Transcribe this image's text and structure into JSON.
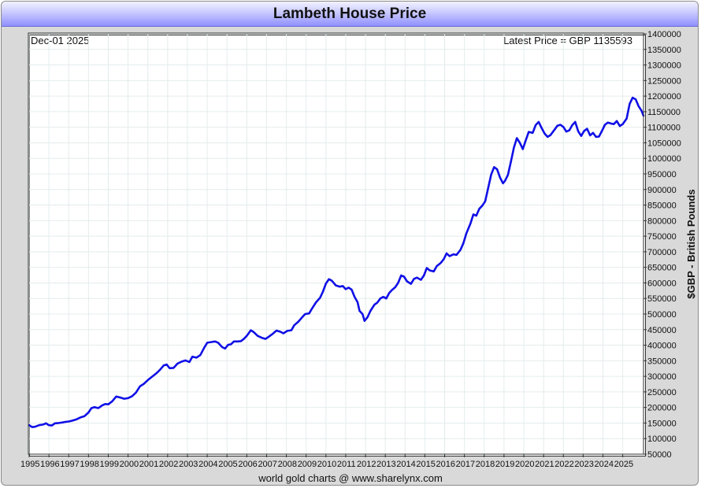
{
  "title": "Lambeth House Price",
  "date_label": "Dec-01  2025",
  "latest_price_label": "Latest Price = GBP 1135593",
  "footer": "world gold charts @ www.sharelynx.com",
  "colors": {
    "line": "#1010e6",
    "grid": "#e4ecec",
    "frame": "#d9d9d9"
  },
  "chart_data": {
    "type": "line",
    "title": "Lambeth House Price",
    "xlabel": "",
    "ylabel": "$GBP - British Pounds",
    "ylim": [
      50000,
      1400000
    ],
    "xlim": [
      1995.0,
      2026.05
    ],
    "y_ticks": [
      50000,
      100000,
      150000,
      200000,
      250000,
      300000,
      350000,
      400000,
      450000,
      500000,
      550000,
      600000,
      650000,
      700000,
      750000,
      800000,
      850000,
      900000,
      950000,
      1000000,
      1050000,
      1100000,
      1150000,
      1200000,
      1250000,
      1300000,
      1350000,
      1400000
    ],
    "x_ticks": [
      "1995",
      "1996",
      "1997",
      "1998",
      "1999",
      "2000",
      "2001",
      "2002",
      "2003",
      "2004",
      "2005",
      "2006",
      "2007",
      "2008",
      "2009",
      "2010",
      "2011",
      "2012",
      "2013",
      "2014",
      "2015",
      "2016",
      "2017",
      "2018",
      "2019",
      "2020",
      "2021",
      "2022",
      "2023",
      "2024",
      "2025"
    ],
    "series": [
      {
        "name": "Lambeth House Price (GBP)",
        "points": [
          [
            1995.0,
            143000
          ],
          [
            1995.15,
            137000
          ],
          [
            1995.3,
            138000
          ],
          [
            1995.5,
            143000
          ],
          [
            1995.7,
            145000
          ],
          [
            1995.85,
            149000
          ],
          [
            1996.0,
            143000
          ],
          [
            1996.15,
            142000
          ],
          [
            1996.3,
            149000
          ],
          [
            1996.5,
            150000
          ],
          [
            1996.7,
            152000
          ],
          [
            1996.85,
            154000
          ],
          [
            1997.0,
            155000
          ],
          [
            1997.2,
            158000
          ],
          [
            1997.4,
            162000
          ],
          [
            1997.6,
            168000
          ],
          [
            1997.8,
            172000
          ],
          [
            1998.0,
            184000
          ],
          [
            1998.15,
            198000
          ],
          [
            1998.3,
            201000
          ],
          [
            1998.5,
            198000
          ],
          [
            1998.7,
            207000
          ],
          [
            1998.85,
            211000
          ],
          [
            1999.0,
            210000
          ],
          [
            1999.2,
            220000
          ],
          [
            1999.4,
            235000
          ],
          [
            1999.6,
            232000
          ],
          [
            1999.8,
            228000
          ],
          [
            2000.0,
            230000
          ],
          [
            2000.2,
            236000
          ],
          [
            2000.4,
            248000
          ],
          [
            2000.6,
            268000
          ],
          [
            2000.8,
            276000
          ],
          [
            2001.0,
            288000
          ],
          [
            2001.2,
            298000
          ],
          [
            2001.4,
            308000
          ],
          [
            2001.6,
            320000
          ],
          [
            2001.8,
            335000
          ],
          [
            2001.95,
            338000
          ],
          [
            2002.1,
            326000
          ],
          [
            2002.3,
            327000
          ],
          [
            2002.5,
            341000
          ],
          [
            2002.7,
            347000
          ],
          [
            2002.9,
            351000
          ],
          [
            2003.1,
            346000
          ],
          [
            2003.25,
            363000
          ],
          [
            2003.45,
            360000
          ],
          [
            2003.65,
            368000
          ],
          [
            2003.85,
            392000
          ],
          [
            2004.0,
            408000
          ],
          [
            2004.2,
            410000
          ],
          [
            2004.4,
            412000
          ],
          [
            2004.55,
            408000
          ],
          [
            2004.75,
            394000
          ],
          [
            2004.9,
            389000
          ],
          [
            2005.05,
            401000
          ],
          [
            2005.2,
            403000
          ],
          [
            2005.35,
            412000
          ],
          [
            2005.55,
            412000
          ],
          [
            2005.7,
            413000
          ],
          [
            2005.85,
            420000
          ],
          [
            2006.0,
            430000
          ],
          [
            2006.2,
            448000
          ],
          [
            2006.35,
            442000
          ],
          [
            2006.55,
            430000
          ],
          [
            2006.75,
            424000
          ],
          [
            2006.95,
            420000
          ],
          [
            2007.1,
            427000
          ],
          [
            2007.3,
            436000
          ],
          [
            2007.5,
            447000
          ],
          [
            2007.7,
            443000
          ],
          [
            2007.85,
            438000
          ],
          [
            2008.05,
            446000
          ],
          [
            2008.25,
            448000
          ],
          [
            2008.4,
            464000
          ],
          [
            2008.6,
            475000
          ],
          [
            2008.8,
            490000
          ],
          [
            2008.95,
            500000
          ],
          [
            2009.15,
            502000
          ],
          [
            2009.3,
            518000
          ],
          [
            2009.5,
            538000
          ],
          [
            2009.7,
            552000
          ],
          [
            2009.85,
            572000
          ],
          [
            2010.0,
            598000
          ],
          [
            2010.15,
            612000
          ],
          [
            2010.3,
            607000
          ],
          [
            2010.5,
            592000
          ],
          [
            2010.7,
            588000
          ],
          [
            2010.85,
            590000
          ],
          [
            2011.0,
            580000
          ],
          [
            2011.15,
            585000
          ],
          [
            2011.3,
            578000
          ],
          [
            2011.45,
            555000
          ],
          [
            2011.6,
            538000
          ],
          [
            2011.7,
            510000
          ],
          [
            2011.85,
            500000
          ],
          [
            2011.95,
            478000
          ],
          [
            2012.1,
            490000
          ],
          [
            2012.25,
            510000
          ],
          [
            2012.45,
            530000
          ],
          [
            2012.6,
            537000
          ],
          [
            2012.75,
            550000
          ],
          [
            2012.9,
            555000
          ],
          [
            2013.05,
            550000
          ],
          [
            2013.2,
            568000
          ],
          [
            2013.35,
            578000
          ],
          [
            2013.5,
            586000
          ],
          [
            2013.65,
            600000
          ],
          [
            2013.8,
            624000
          ],
          [
            2013.95,
            620000
          ],
          [
            2014.1,
            605000
          ],
          [
            2014.3,
            597000
          ],
          [
            2014.45,
            613000
          ],
          [
            2014.6,
            617000
          ],
          [
            2014.8,
            610000
          ],
          [
            2014.95,
            624000
          ],
          [
            2015.1,
            648000
          ],
          [
            2015.25,
            640000
          ],
          [
            2015.45,
            637000
          ],
          [
            2015.6,
            654000
          ],
          [
            2015.8,
            664000
          ],
          [
            2015.95,
            676000
          ],
          [
            2016.1,
            695000
          ],
          [
            2016.25,
            686000
          ],
          [
            2016.45,
            692000
          ],
          [
            2016.6,
            690000
          ],
          [
            2016.8,
            706000
          ],
          [
            2016.95,
            728000
          ],
          [
            2017.1,
            760000
          ],
          [
            2017.3,
            790000
          ],
          [
            2017.45,
            820000
          ],
          [
            2017.6,
            816000
          ],
          [
            2017.75,
            838000
          ],
          [
            2017.9,
            848000
          ],
          [
            2018.05,
            862000
          ],
          [
            2018.2,
            905000
          ],
          [
            2018.35,
            948000
          ],
          [
            2018.5,
            972000
          ],
          [
            2018.65,
            965000
          ],
          [
            2018.8,
            938000
          ],
          [
            2018.95,
            920000
          ],
          [
            2019.05,
            928000
          ],
          [
            2019.2,
            947000
          ],
          [
            2019.35,
            990000
          ],
          [
            2019.5,
            1035000
          ],
          [
            2019.65,
            1065000
          ],
          [
            2019.8,
            1050000
          ],
          [
            2019.95,
            1030000
          ],
          [
            2020.1,
            1058000
          ],
          [
            2020.25,
            1085000
          ],
          [
            2020.45,
            1082000
          ],
          [
            2020.6,
            1107000
          ],
          [
            2020.75,
            1117000
          ],
          [
            2020.9,
            1098000
          ],
          [
            2021.05,
            1080000
          ],
          [
            2021.2,
            1069000
          ],
          [
            2021.35,
            1075000
          ],
          [
            2021.55,
            1092000
          ],
          [
            2021.7,
            1105000
          ],
          [
            2021.85,
            1108000
          ],
          [
            2022.0,
            1101000
          ],
          [
            2022.15,
            1086000
          ],
          [
            2022.3,
            1090000
          ],
          [
            2022.45,
            1107000
          ],
          [
            2022.6,
            1117000
          ],
          [
            2022.75,
            1087000
          ],
          [
            2022.9,
            1072000
          ],
          [
            2023.05,
            1088000
          ],
          [
            2023.2,
            1095000
          ],
          [
            2023.35,
            1074000
          ],
          [
            2023.5,
            1082000
          ],
          [
            2023.65,
            1069000
          ],
          [
            2023.8,
            1070000
          ],
          [
            2023.95,
            1088000
          ],
          [
            2024.1,
            1108000
          ],
          [
            2024.25,
            1115000
          ],
          [
            2024.4,
            1112000
          ],
          [
            2024.55,
            1110000
          ],
          [
            2024.7,
            1120000
          ],
          [
            2024.85,
            1104000
          ],
          [
            2025.0,
            1110000
          ],
          [
            2025.2,
            1128000
          ],
          [
            2025.35,
            1175000
          ],
          [
            2025.5,
            1195000
          ],
          [
            2025.65,
            1190000
          ],
          [
            2025.8,
            1168000
          ],
          [
            2025.95,
            1153000
          ],
          [
            2026.05,
            1137000
          ]
        ]
      }
    ]
  }
}
